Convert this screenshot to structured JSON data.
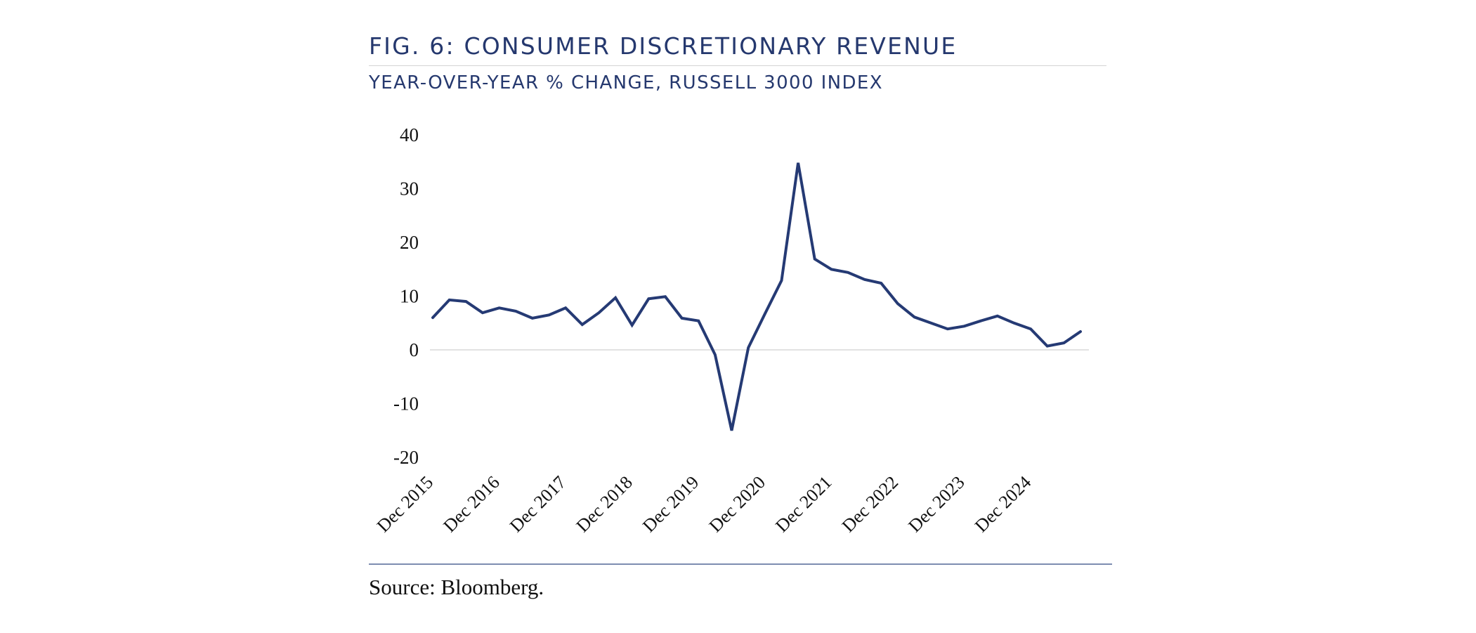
{
  "header": {
    "title": "FIG. 6: CONSUMER DISCRETIONARY REVENUE",
    "subtitle": "YEAR-OVER-YEAR % CHANGE, RUSSELL 3000 INDEX"
  },
  "footer": {
    "source": "Source: Bloomberg."
  },
  "colors": {
    "title": "#25386e",
    "line": "#253a74",
    "gridline": "#d9d9d9"
  },
  "chart_data": {
    "type": "line",
    "title": "FIG. 6: CONSUMER DISCRETIONARY REVENUE",
    "subtitle": "YEAR-OVER-YEAR % CHANGE, RUSSELL 3000 INDEX",
    "xlabel": "",
    "ylabel": "",
    "ylim": [
      -20,
      40
    ],
    "yticks": [
      40,
      30,
      20,
      10,
      0,
      -10,
      -20
    ],
    "grid": "zero-line only",
    "legend": "none",
    "x": [
      "Dec 2015",
      "Mar 2016",
      "Jun 2016",
      "Sep 2016",
      "Dec 2016",
      "Mar 2017",
      "Jun 2017",
      "Sep 2017",
      "Dec 2017",
      "Mar 2018",
      "Jun 2018",
      "Sep 2018",
      "Dec 2018",
      "Mar 2019",
      "Jun 2019",
      "Sep 2019",
      "Dec 2019",
      "Mar 2020",
      "Jun 2020",
      "Sep 2020",
      "Dec 2020",
      "Mar 2021",
      "Jun 2021",
      "Sep 2021",
      "Dec 2021",
      "Mar 2022",
      "Jun 2022",
      "Sep 2022",
      "Dec 2022",
      "Mar 2023",
      "Jun 2023",
      "Sep 2023",
      "Dec 2023",
      "Mar 2024",
      "Jun 2024",
      "Sep 2024",
      "Dec 2024",
      "Mar 2025",
      "Jun 2025",
      "Sep 2025"
    ],
    "xtick_labels": [
      "Dec 2015",
      "Dec 2016",
      "Dec 2017",
      "Dec 2018",
      "Dec 2019",
      "Dec 2020",
      "Dec 2021",
      "Dec 2022",
      "Dec 2023",
      "Dec 2024"
    ],
    "series": [
      {
        "name": "Consumer Discretionary Revenue YoY %",
        "values": [
          6.0,
          9.3,
          9.0,
          6.9,
          7.8,
          7.2,
          5.9,
          6.5,
          7.8,
          4.7,
          6.9,
          9.7,
          4.6,
          9.5,
          9.9,
          5.9,
          5.4,
          -0.9,
          -15.0,
          0.4,
          6.7,
          12.9,
          34.8,
          16.9,
          15.0,
          14.4,
          13.1,
          12.4,
          8.6,
          6.1,
          5.0,
          3.9,
          4.4,
          5.4,
          6.3,
          5.0,
          3.9,
          0.7,
          1.3,
          3.4
        ]
      }
    ],
    "source": "Source: Bloomberg."
  }
}
